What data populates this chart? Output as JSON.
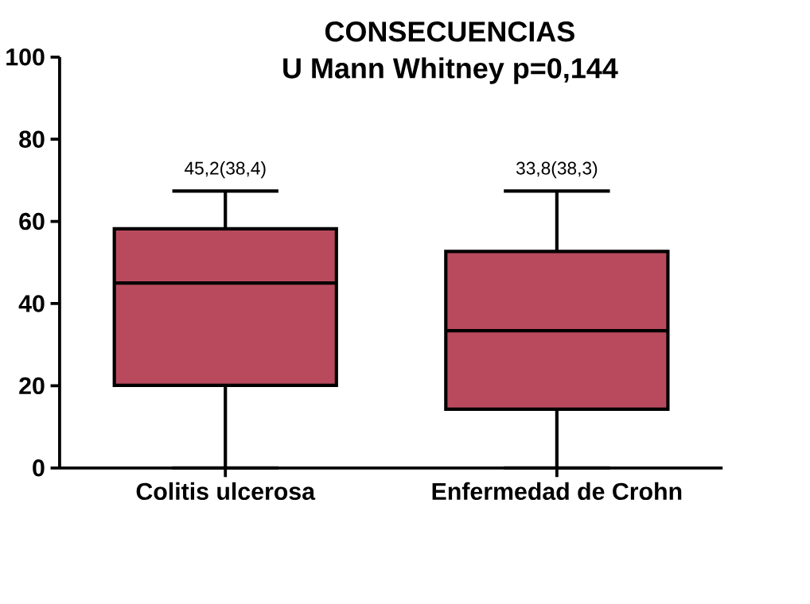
{
  "chart_data": {
    "type": "box",
    "title": "CONSECUENCIAS",
    "subtitle": "U Mann Whitney p=0,144",
    "categories": [
      "Colitis ulcerosa",
      "Enfermedad de Crohn"
    ],
    "boxes": [
      {
        "low": 0,
        "q1": 20.1,
        "median": 45.0,
        "q3": 58.2,
        "high": 67.4
      },
      {
        "low": 0,
        "q1": 14.3,
        "median": 33.4,
        "q3": 52.7,
        "high": 67.4
      }
    ],
    "color": "#b94a5e",
    "ylim": [
      0,
      100
    ],
    "yticks": [
      0,
      20,
      40,
      60,
      80,
      100
    ],
    "annotations": [
      "45,2(38,4)",
      "33,8(38,3)"
    ]
  }
}
